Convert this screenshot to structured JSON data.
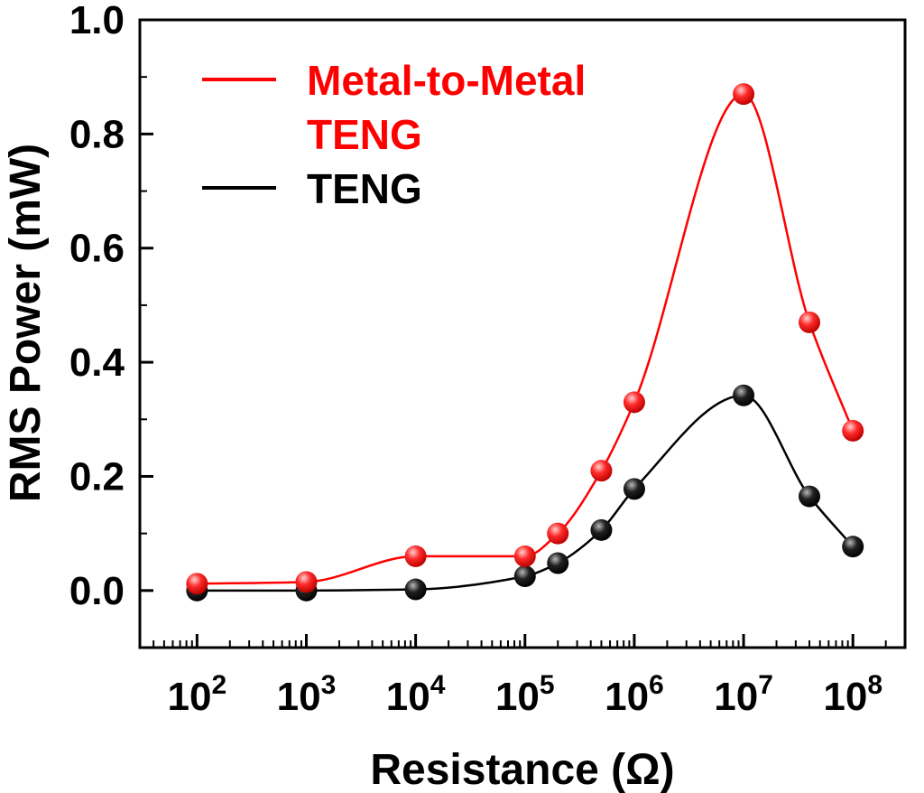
{
  "chart_data": {
    "type": "line",
    "xscale": "log",
    "xlabel": "Resistance (Ω)",
    "ylabel": "RMS Power (mW)",
    "xlim": [
      30,
      300000000
    ],
    "ylim": [
      -0.1,
      1.0
    ],
    "x_ticks": [
      {
        "base": "10",
        "exp": "2",
        "value": 100
      },
      {
        "base": "10",
        "exp": "3",
        "value": 1000
      },
      {
        "base": "10",
        "exp": "4",
        "value": 10000
      },
      {
        "base": "10",
        "exp": "5",
        "value": 100000
      },
      {
        "base": "10",
        "exp": "6",
        "value": 1000000
      },
      {
        "base": "10",
        "exp": "7",
        "value": 10000000
      },
      {
        "base": "10",
        "exp": "8",
        "value": 100000000
      }
    ],
    "y_ticks": [
      {
        "label": "0.0",
        "value": 0.0
      },
      {
        "label": "0.2",
        "value": 0.2
      },
      {
        "label": "0.4",
        "value": 0.4
      },
      {
        "label": "0.6",
        "value": 0.6
      },
      {
        "label": "0.8",
        "value": 0.8
      },
      {
        "label": "1.0",
        "value": 1.0
      }
    ],
    "legend_position": "top-left",
    "legend": [
      {
        "lines": [
          "Metal-to-Metal",
          "TENG"
        ],
        "color": "#ff0000"
      },
      {
        "lines": [
          "TENG"
        ],
        "color": "#000000"
      }
    ],
    "series": [
      {
        "name": "Metal-to-Metal TENG",
        "color": "#ff0000",
        "x": [
          100,
          1000,
          10000,
          100000,
          200000,
          500000,
          1000000,
          10000000,
          40000000,
          100000000
        ],
        "y": [
          0.012,
          0.015,
          0.06,
          0.06,
          0.1,
          0.21,
          0.33,
          0.87,
          0.47,
          0.28
        ]
      },
      {
        "name": "TENG",
        "color": "#000000",
        "x": [
          100,
          1000,
          10000,
          100000,
          200000,
          500000,
          1000000,
          10000000,
          40000000,
          100000000
        ],
        "y": [
          0.0,
          0.0,
          0.002,
          0.025,
          0.048,
          0.106,
          0.178,
          0.342,
          0.165,
          0.077
        ]
      }
    ]
  }
}
